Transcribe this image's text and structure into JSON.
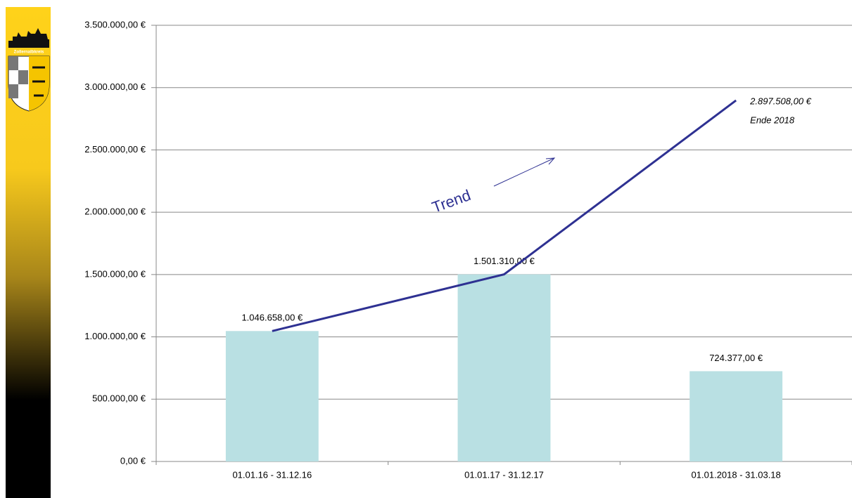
{
  "logo": "Zollernalbkreis",
  "chart_data": {
    "type": "bar",
    "categories": [
      "01.01.16 - 31.12.16",
      "01.01.17 - 31.12.17",
      "01.01.2018 - 31.03.18"
    ],
    "values": [
      1046658,
      1501310,
      724377
    ],
    "value_labels": [
      "1.046.658,00 €",
      "1.501.310,00 €",
      "724.377,00 €"
    ],
    "color": "#b9e0e3",
    "ylim": [
      0,
      3500000
    ],
    "yticks": [
      {
        "value": 0,
        "label": "0,00 €"
      },
      {
        "value": 500000,
        "label": "500.000,00 €"
      },
      {
        "value": 1000000,
        "label": "1.000.000,00 €"
      },
      {
        "value": 1500000,
        "label": "1.500.000,00 €"
      },
      {
        "value": 2000000,
        "label": "2.000.000,00 €"
      },
      {
        "value": 2500000,
        "label": "2.500.000,00 €"
      },
      {
        "value": 3000000,
        "label": "3.000.000,00 €"
      },
      {
        "value": 3500000,
        "label": "3.500.000,00 €"
      }
    ],
    "grid": true,
    "trend": {
      "type": "line",
      "values": [
        1046658,
        1501310,
        2897508
      ],
      "color": "#2e3192",
      "end_label": "2.897.508,00 €",
      "end_note": "Ende 2018"
    },
    "annotation": "Trend"
  }
}
